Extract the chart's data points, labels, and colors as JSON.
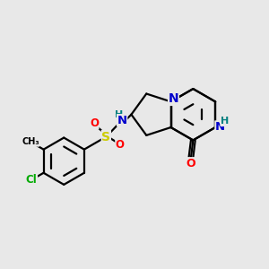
{
  "background_color": "#e8e8e8",
  "bond_color": "#000000",
  "bond_width": 1.6,
  "atom_colors": {
    "N": "#0000cc",
    "O": "#ff0000",
    "S": "#cccc00",
    "Cl": "#00aa00",
    "C": "#000000",
    "H": "#008080"
  },
  "figsize": [
    3.0,
    3.0
  ],
  "dpi": 100
}
